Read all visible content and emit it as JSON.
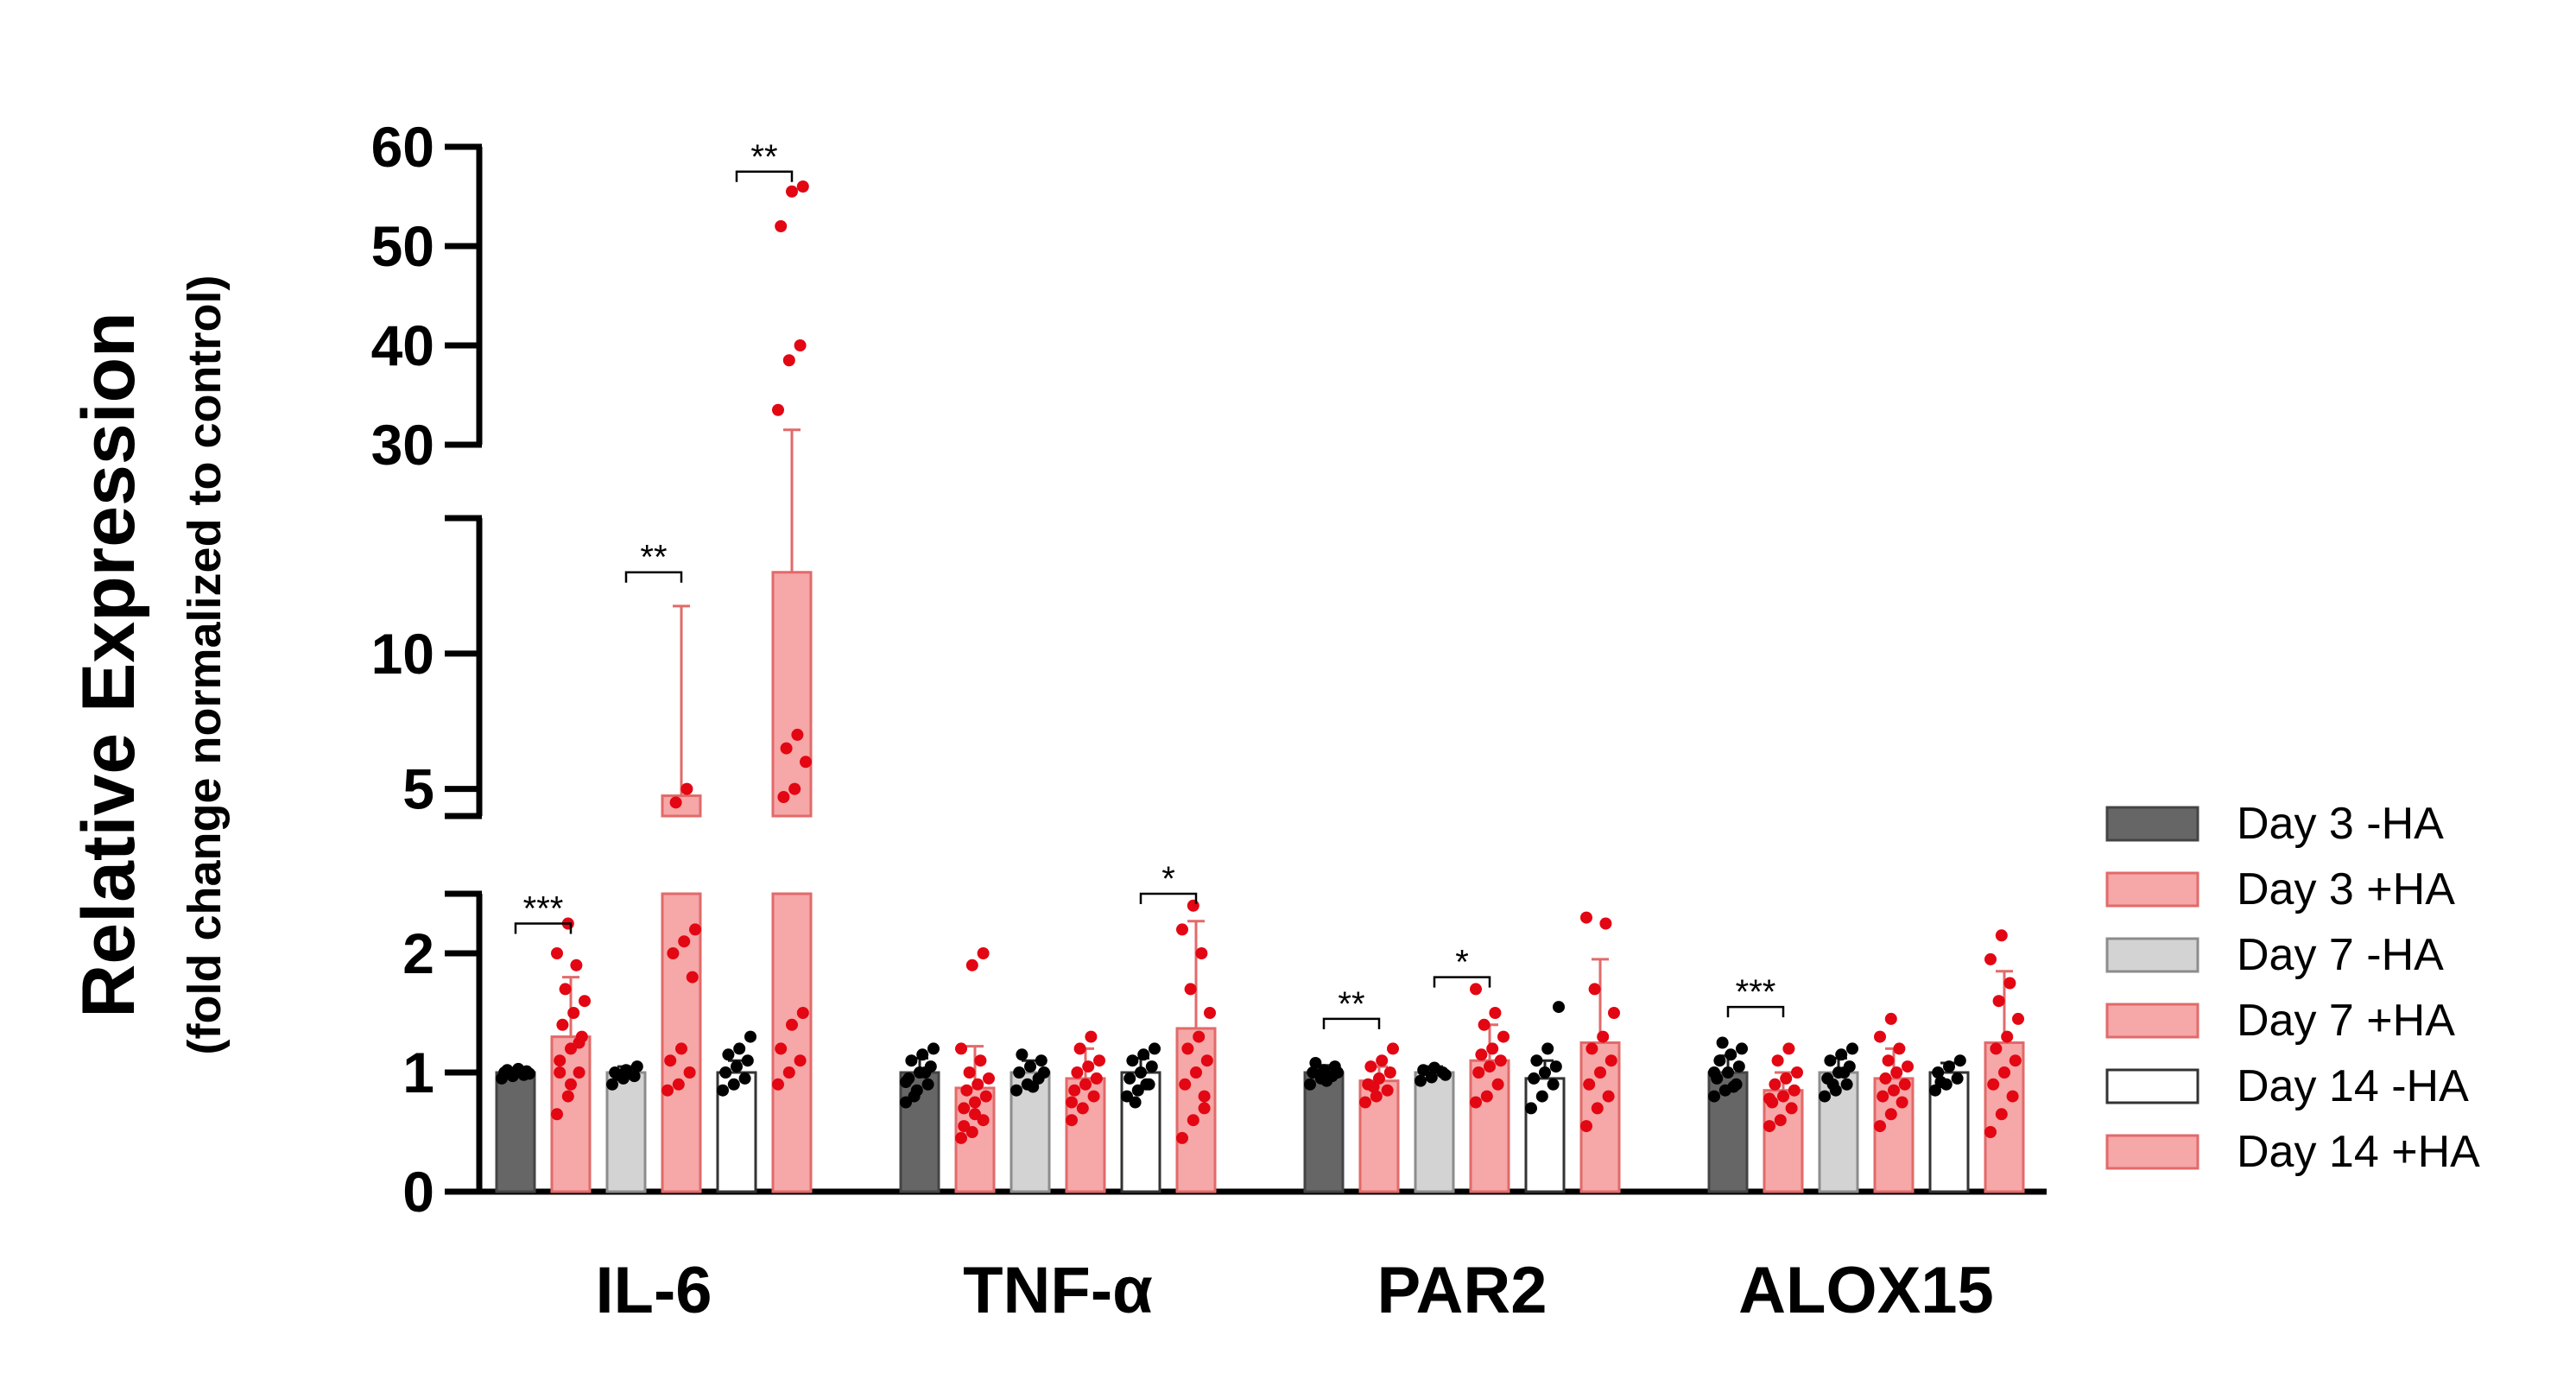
{
  "chart_data": {
    "type": "bar",
    "ylabel": "Relative Expression",
    "ylabel_sub": "(fold change normalized to control)",
    "categories": [
      "IL-6",
      "TNF-α",
      "PAR2",
      "ALOX15"
    ],
    "y_axis": {
      "broken": true,
      "segments": [
        {
          "range": [
            0,
            2.5
          ],
          "ticks": [
            "0",
            "1",
            "2"
          ]
        },
        {
          "range": [
            4,
            15
          ],
          "ticks": [
            "5",
            "10"
          ]
        },
        {
          "range": [
            30,
            60
          ],
          "ticks": [
            "30",
            "40",
            "50",
            "60"
          ]
        }
      ]
    },
    "series": [
      {
        "name": "Day 3 -HA",
        "color": "#666666",
        "values": [
          1.0,
          1.0,
          1.0,
          1.0
        ],
        "errors": [
          0.02,
          0.12,
          0.06,
          0.14
        ],
        "points": [
          [
            0.95,
            0.97,
            0.98,
            1.0,
            1.0,
            1.01,
            1.02,
            1.03,
            0.99,
            1.0
          ],
          [
            0.75,
            0.85,
            0.9,
            0.95,
            1.0,
            1.05,
            1.1,
            1.15,
            1.2,
            0.8,
            1.0,
            0.92
          ],
          [
            0.9,
            0.95,
            0.97,
            1.0,
            1.02,
            1.05,
            1.08,
            0.93,
            1.0
          ],
          [
            0.8,
            0.85,
            0.9,
            0.95,
            1.0,
            1.05,
            1.1,
            1.15,
            1.2,
            1.25,
            0.88,
            1.0
          ]
        ]
      },
      {
        "name": "Day 3 +HA",
        "color": "#f49b9b",
        "values": [
          1.3,
          0.87,
          0.93,
          0.85
        ],
        "errors": [
          0.5,
          0.35,
          0.12,
          0.15
        ],
        "points": [
          [
            0.65,
            0.8,
            1.0,
            1.1,
            1.2,
            1.3,
            1.4,
            1.5,
            1.6,
            1.7,
            1.9,
            2.0,
            2.25,
            1.25,
            1.0,
            0.9
          ],
          [
            0.45,
            0.5,
            0.6,
            0.7,
            0.75,
            0.8,
            0.85,
            0.9,
            0.95,
            1.0,
            1.1,
            1.2,
            1.9,
            2.0,
            0.55,
            0.65
          ],
          [
            0.75,
            0.8,
            0.85,
            0.9,
            0.95,
            1.0,
            1.05,
            1.1,
            1.2,
            0.88
          ],
          [
            0.55,
            0.6,
            0.7,
            0.75,
            0.8,
            0.85,
            0.9,
            0.95,
            1.0,
            1.1,
            1.2,
            0.78
          ]
        ]
      },
      {
        "name": "Day 7 -HA",
        "color": "#d3d3d3",
        "values": [
          1.0,
          1.0,
          1.0,
          1.0
        ],
        "errors": [
          0.05,
          0.1,
          0.05,
          0.12
        ],
        "points": [
          [
            0.9,
            0.95,
            0.97,
            1.0,
            1.02,
            1.05,
            0.98
          ],
          [
            0.85,
            0.9,
            0.95,
            1.0,
            1.05,
            1.1,
            1.15,
            0.88,
            1.0
          ],
          [
            0.93,
            0.96,
            1.0,
            1.02,
            1.04,
            0.98
          ],
          [
            0.8,
            0.85,
            0.9,
            0.95,
            1.0,
            1.05,
            1.1,
            1.15,
            1.2,
            0.9,
            1.0
          ]
        ]
      },
      {
        "name": "Day 7 +HA",
        "color": "#f49b9b",
        "values": [
          4.75,
          0.95,
          1.1,
          0.95
        ],
        "errors": [
          7.0,
          0.25,
          0.3,
          0.25
        ],
        "points": [
          [
            0.85,
            0.9,
            1.0,
            1.1,
            1.2,
            1.8,
            2.0,
            2.1,
            2.2,
            4.5,
            5.0
          ],
          [
            0.6,
            0.7,
            0.8,
            0.85,
            0.9,
            0.95,
            1.0,
            1.05,
            1.1,
            1.2,
            1.3,
            0.75
          ],
          [
            0.75,
            0.8,
            0.9,
            1.0,
            1.05,
            1.1,
            1.15,
            1.2,
            1.3,
            1.4,
            1.5,
            1.7
          ],
          [
            0.55,
            0.65,
            0.75,
            0.8,
            0.85,
            0.9,
            0.95,
            1.0,
            1.05,
            1.1,
            1.2,
            1.3,
            1.45
          ]
        ]
      },
      {
        "name": "Day 14 -HA",
        "color": "#ffffff",
        "values": [
          1.0,
          1.0,
          0.95,
          1.0
        ],
        "errors": [
          0.1,
          0.12,
          0.15,
          0.08
        ],
        "points": [
          [
            0.85,
            0.9,
            0.95,
            1.0,
            1.05,
            1.1,
            1.15,
            1.2,
            1.3
          ],
          [
            0.8,
            0.85,
            0.9,
            0.95,
            1.0,
            1.05,
            1.1,
            1.15,
            1.2,
            0.75,
            0.9
          ],
          [
            0.7,
            0.8,
            0.9,
            0.95,
            1.0,
            1.05,
            1.1,
            1.2,
            1.55
          ],
          [
            0.85,
            0.9,
            0.95,
            1.0,
            1.05,
            1.1,
            0.92
          ]
        ]
      },
      {
        "name": "Day 14 +HA",
        "color": "#f49b9b",
        "values": [
          13.0,
          1.37,
          1.25,
          1.25
        ],
        "errors": [
          18.5,
          0.9,
          0.7,
          0.6
        ],
        "points": [
          [
            0.9,
            1.0,
            1.1,
            1.2,
            1.4,
            1.5,
            4.7,
            5.0,
            6.0,
            6.5,
            7.0,
            33.5,
            38.5,
            40.0,
            52.0,
            55.5,
            56.0
          ],
          [
            0.45,
            0.6,
            0.8,
            0.9,
            1.0,
            1.1,
            1.2,
            1.3,
            1.5,
            1.7,
            2.0,
            2.2,
            2.4,
            0.7
          ],
          [
            0.55,
            0.7,
            0.8,
            0.9,
            1.0,
            1.1,
            1.2,
            1.3,
            1.5,
            1.7,
            2.25,
            2.3
          ],
          [
            0.5,
            0.65,
            0.8,
            0.9,
            1.0,
            1.1,
            1.2,
            1.3,
            1.45,
            1.6,
            1.75,
            1.95,
            2.15
          ]
        ]
      }
    ],
    "significance": [
      {
        "category": "IL-6",
        "pair": [
          0,
          1
        ],
        "label": "***",
        "y": 2.25
      },
      {
        "category": "IL-6",
        "pair": [
          2,
          3
        ],
        "label": "**",
        "y": 13.0
      },
      {
        "category": "IL-6",
        "pair": [
          4,
          5
        ],
        "label": "**",
        "y": 57.5
      },
      {
        "category": "TNF-α",
        "pair": [
          4,
          5
        ],
        "label": "*",
        "y": 2.55
      },
      {
        "category": "PAR2",
        "pair": [
          0,
          1
        ],
        "label": "**",
        "y": 1.45
      },
      {
        "category": "PAR2",
        "pair": [
          2,
          3
        ],
        "label": "*",
        "y": 1.8
      },
      {
        "category": "ALOX15",
        "pair": [
          0,
          1
        ],
        "label": "***",
        "y": 1.55
      }
    ],
    "legend_placement": "right",
    "grid": false
  }
}
